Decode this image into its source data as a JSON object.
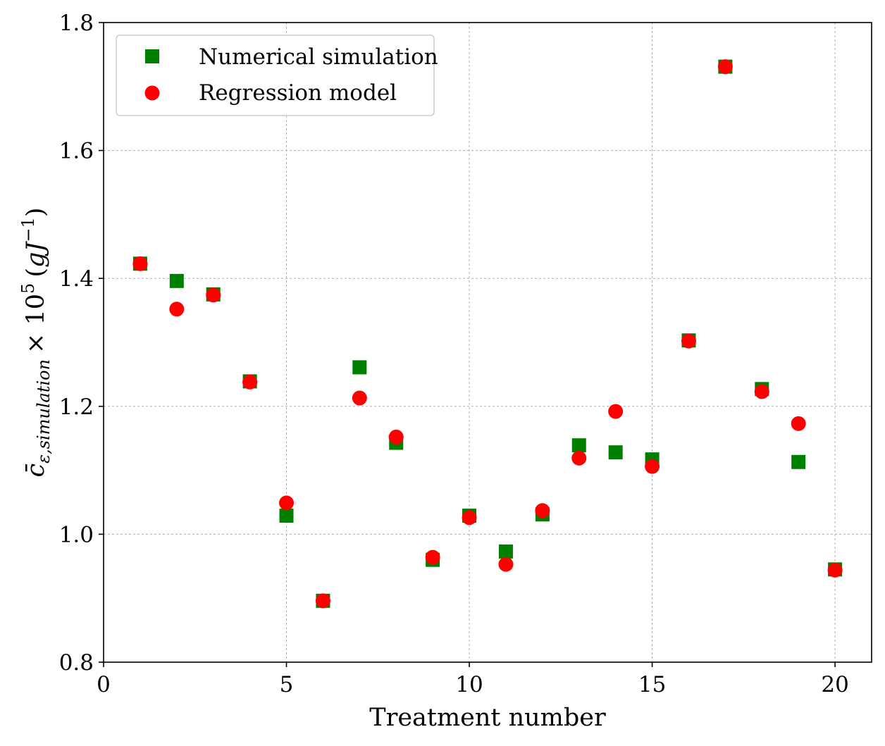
{
  "chart_data": {
    "type": "scatter",
    "xlabel": "Treatment number",
    "ylabel": {
      "symbol": "c̄",
      "subscript": "ε,simulation",
      "times": "× 10",
      "exponent": "5",
      "unit_open": "(",
      "unit_base": "gJ",
      "unit_exponent": "−1",
      "unit_close": ")"
    },
    "xlim": [
      0,
      21
    ],
    "ylim": [
      0.8,
      1.8
    ],
    "xticks": [
      0,
      5,
      10,
      15,
      20
    ],
    "xtick_labels": [
      "0",
      "5",
      "10",
      "15",
      "20"
    ],
    "yticks": [
      0.8,
      1.0,
      1.2,
      1.4,
      1.6,
      1.8
    ],
    "ytick_labels": [
      "0.8",
      "1.0",
      "1.2",
      "1.4",
      "1.6",
      "1.8"
    ],
    "grid": true,
    "legend_position": "top-left",
    "series": [
      {
        "name": "Numerical simulation",
        "marker": "square",
        "color": "#008000",
        "x": [
          1,
          2,
          3,
          4,
          5,
          6,
          7,
          8,
          9,
          10,
          11,
          12,
          13,
          14,
          15,
          16,
          17,
          18,
          19,
          20
        ],
        "y": [
          1.423,
          1.396,
          1.375,
          1.239,
          1.029,
          0.896,
          1.261,
          1.143,
          0.96,
          1.029,
          0.973,
          1.031,
          1.139,
          1.128,
          1.117,
          1.303,
          1.731,
          1.227,
          1.113,
          0.945
        ]
      },
      {
        "name": "Regression model",
        "marker": "circle",
        "color": "#ff0000",
        "x": [
          1,
          2,
          3,
          4,
          5,
          6,
          7,
          8,
          9,
          10,
          11,
          12,
          13,
          14,
          15,
          16,
          17,
          18,
          19,
          20
        ],
        "y": [
          1.423,
          1.352,
          1.374,
          1.238,
          1.049,
          0.896,
          1.213,
          1.152,
          0.964,
          1.026,
          0.953,
          1.037,
          1.119,
          1.192,
          1.106,
          1.302,
          1.731,
          1.223,
          1.173,
          0.944
        ]
      }
    ]
  }
}
